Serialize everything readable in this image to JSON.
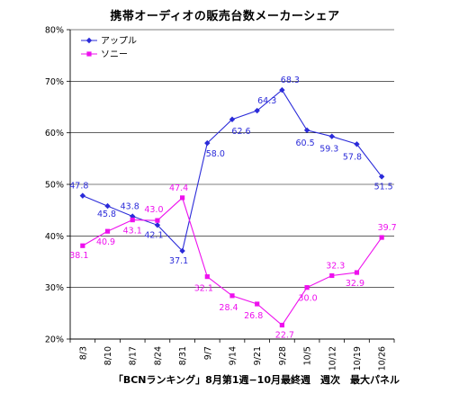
{
  "chart_data": {
    "type": "line",
    "title": "携帯オーディオの販売台数メーカーシェア",
    "categories": [
      "8/3",
      "8/10",
      "8/17",
      "8/24",
      "8/31",
      "9/7",
      "9/14",
      "9/21",
      "9/28",
      "10/5",
      "10/12",
      "10/19",
      "10/26"
    ],
    "series": [
      {
        "name": "アップル",
        "color": "#2b2bd9",
        "marker": "diamond",
        "values": [
          47.8,
          45.8,
          43.8,
          42.1,
          37.1,
          58.0,
          62.6,
          64.3,
          68.3,
          60.5,
          59.3,
          57.8,
          51.5
        ]
      },
      {
        "name": "ソニー",
        "color": "#ee10ee",
        "marker": "square",
        "values": [
          38.1,
          40.9,
          43.1,
          43.0,
          47.4,
          32.1,
          28.4,
          26.8,
          22.7,
          30.0,
          32.3,
          32.9,
          39.7
        ]
      }
    ],
    "ylim": [
      20,
      80
    ],
    "yticks": [
      "20%",
      "30%",
      "40%",
      "50%",
      "60%",
      "70%",
      "80%"
    ],
    "grid": true,
    "legend": "top-left",
    "source": "「BCNランキング」8月第1週−10月最終週　週次　最大パネル"
  }
}
